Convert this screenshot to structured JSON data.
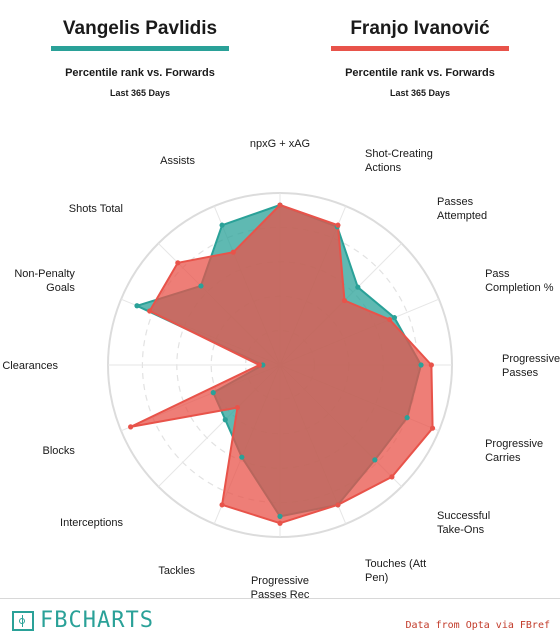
{
  "header": {
    "left": {
      "player_name": "Vangelis Pavlidis",
      "subtitle": "Percentile rank vs. Forwards",
      "period": "Last 365 Days",
      "color": "#2aa198"
    },
    "right": {
      "player_name": "Franjo Ivanović",
      "subtitle": "Percentile rank vs. Forwards",
      "period": "Last 365 Days",
      "color": "#e8534a"
    }
  },
  "chart_data": {
    "type": "radar",
    "categories": [
      "npxG + xAG",
      "Shot-Creating\nActions",
      "Passes\nAttempted",
      "Pass\nCompletion %",
      "Progressive\nPasses",
      "Progressive\nCarries",
      "Successful\nTake-Ons",
      "Touches (Att\nPen)",
      "Progressive\nPasses Rec",
      "Tackles",
      "Interceptions",
      "Blocks",
      "Clearances",
      "Non-Penalty\nGoals",
      "Shots Total",
      "Assists"
    ],
    "rlim": [
      0,
      100
    ],
    "grid_rings": [
      20,
      40,
      60,
      80,
      100
    ],
    "series": [
      {
        "name": "Vangelis Pavlidis",
        "color": "#2aa198",
        "values": [
          93,
          87,
          64,
          72,
          82,
          80,
          78,
          88,
          88,
          58,
          45,
          42,
          10,
          90,
          65,
          88
        ]
      },
      {
        "name": "Franjo Ivanović",
        "color": "#e8534a",
        "values": [
          93,
          88,
          53,
          69,
          88,
          96,
          92,
          88,
          92,
          88,
          35,
          94,
          12,
          82,
          84,
          71
        ]
      }
    ]
  },
  "footer": {
    "logo_text": "FBCHARTS",
    "source": "Data from Opta via FBref"
  }
}
